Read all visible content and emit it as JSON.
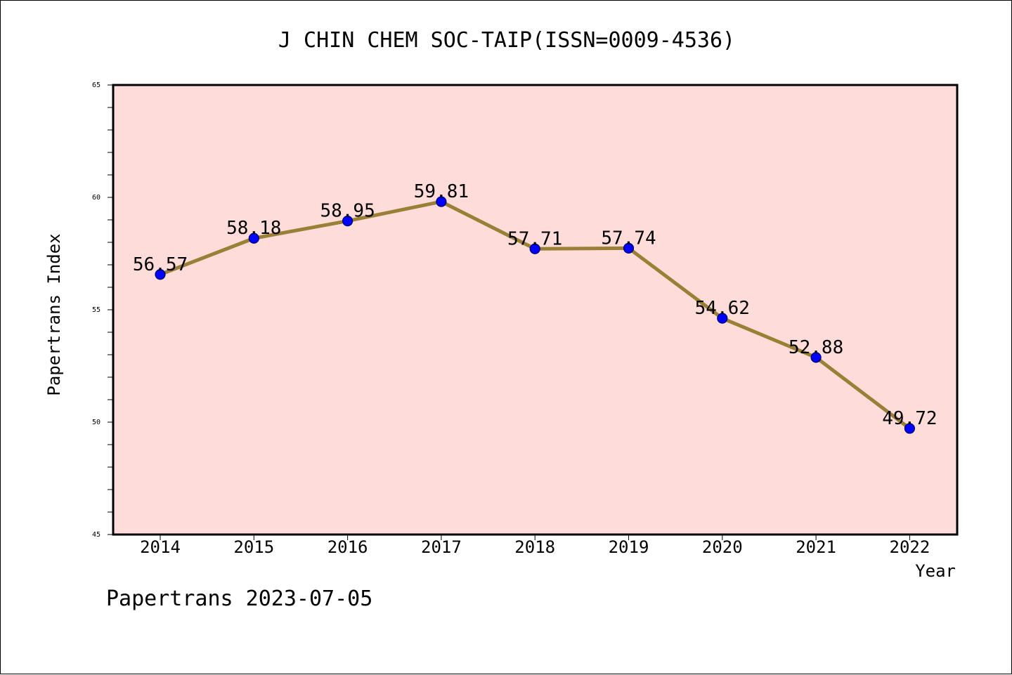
{
  "footer": "Papertrans 2023-07-05",
  "chart_data": {
    "type": "line",
    "title": "J CHIN CHEM SOC-TAIP(ISSN=0009-4536)",
    "xlabel": "Year",
    "ylabel": "Papertrans Index",
    "categories": [
      "2014",
      "2015",
      "2016",
      "2017",
      "2018",
      "2019",
      "2020",
      "2021",
      "2022"
    ],
    "series": [
      {
        "values": [
          56.57,
          58.18,
          58.95,
          59.81,
          57.71,
          57.74,
          54.62,
          52.88,
          49.72
        ],
        "data_labels": [
          "56.57",
          "58.18",
          "58.95",
          "59.81",
          "57.71",
          "57.74",
          "54.62",
          "52.88",
          "49.72"
        ]
      }
    ],
    "ylim": [
      45,
      65
    ],
    "yticks": [
      "45",
      "50",
      "55",
      "60",
      "65"
    ],
    "grid": false,
    "legend": "none",
    "colors": {
      "plot_background": "#fddcda",
      "line": "#998035",
      "marker": "#0000ff",
      "marker_edge": "#000066"
    }
  }
}
